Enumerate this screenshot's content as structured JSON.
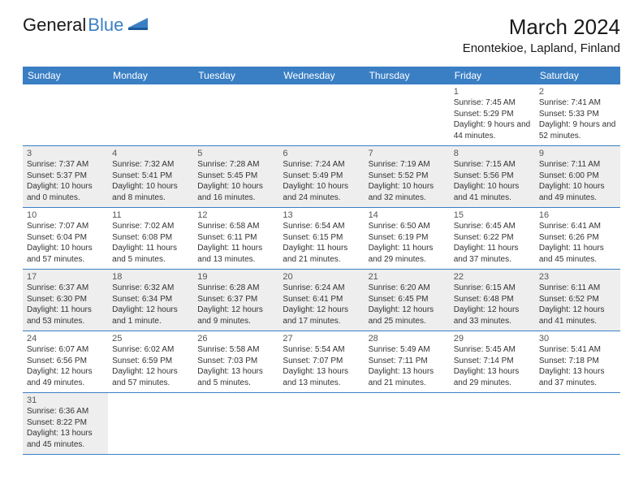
{
  "logo": {
    "general": "General",
    "blue": "Blue"
  },
  "title": "March 2024",
  "location": "Enontekioe, Lapland, Finland",
  "colors": {
    "header_bg": "#3a7fc4",
    "header_text": "#ffffff",
    "shaded_cell": "#eeeeee",
    "row_border": "#3a7fc4",
    "logo_blue": "#3a7fc4"
  },
  "weekdays": [
    "Sunday",
    "Monday",
    "Tuesday",
    "Wednesday",
    "Thursday",
    "Friday",
    "Saturday"
  ],
  "weeks": [
    [
      null,
      null,
      null,
      null,
      null,
      {
        "n": "1",
        "sr": "7:45 AM",
        "ss": "5:29 PM",
        "dl": "9 hours and 44 minutes."
      },
      {
        "n": "2",
        "sr": "7:41 AM",
        "ss": "5:33 PM",
        "dl": "9 hours and 52 minutes."
      }
    ],
    [
      {
        "n": "3",
        "sr": "7:37 AM",
        "ss": "5:37 PM",
        "dl": "10 hours and 0 minutes.",
        "shaded": true
      },
      {
        "n": "4",
        "sr": "7:32 AM",
        "ss": "5:41 PM",
        "dl": "10 hours and 8 minutes.",
        "shaded": true
      },
      {
        "n": "5",
        "sr": "7:28 AM",
        "ss": "5:45 PM",
        "dl": "10 hours and 16 minutes.",
        "shaded": true
      },
      {
        "n": "6",
        "sr": "7:24 AM",
        "ss": "5:49 PM",
        "dl": "10 hours and 24 minutes.",
        "shaded": true
      },
      {
        "n": "7",
        "sr": "7:19 AM",
        "ss": "5:52 PM",
        "dl": "10 hours and 32 minutes.",
        "shaded": true
      },
      {
        "n": "8",
        "sr": "7:15 AM",
        "ss": "5:56 PM",
        "dl": "10 hours and 41 minutes.",
        "shaded": true
      },
      {
        "n": "9",
        "sr": "7:11 AM",
        "ss": "6:00 PM",
        "dl": "10 hours and 49 minutes.",
        "shaded": true
      }
    ],
    [
      {
        "n": "10",
        "sr": "7:07 AM",
        "ss": "6:04 PM",
        "dl": "10 hours and 57 minutes."
      },
      {
        "n": "11",
        "sr": "7:02 AM",
        "ss": "6:08 PM",
        "dl": "11 hours and 5 minutes."
      },
      {
        "n": "12",
        "sr": "6:58 AM",
        "ss": "6:11 PM",
        "dl": "11 hours and 13 minutes."
      },
      {
        "n": "13",
        "sr": "6:54 AM",
        "ss": "6:15 PM",
        "dl": "11 hours and 21 minutes."
      },
      {
        "n": "14",
        "sr": "6:50 AM",
        "ss": "6:19 PM",
        "dl": "11 hours and 29 minutes."
      },
      {
        "n": "15",
        "sr": "6:45 AM",
        "ss": "6:22 PM",
        "dl": "11 hours and 37 minutes."
      },
      {
        "n": "16",
        "sr": "6:41 AM",
        "ss": "6:26 PM",
        "dl": "11 hours and 45 minutes."
      }
    ],
    [
      {
        "n": "17",
        "sr": "6:37 AM",
        "ss": "6:30 PM",
        "dl": "11 hours and 53 minutes.",
        "shaded": true
      },
      {
        "n": "18",
        "sr": "6:32 AM",
        "ss": "6:34 PM",
        "dl": "12 hours and 1 minute.",
        "shaded": true
      },
      {
        "n": "19",
        "sr": "6:28 AM",
        "ss": "6:37 PM",
        "dl": "12 hours and 9 minutes.",
        "shaded": true
      },
      {
        "n": "20",
        "sr": "6:24 AM",
        "ss": "6:41 PM",
        "dl": "12 hours and 17 minutes.",
        "shaded": true
      },
      {
        "n": "21",
        "sr": "6:20 AM",
        "ss": "6:45 PM",
        "dl": "12 hours and 25 minutes.",
        "shaded": true
      },
      {
        "n": "22",
        "sr": "6:15 AM",
        "ss": "6:48 PM",
        "dl": "12 hours and 33 minutes.",
        "shaded": true
      },
      {
        "n": "23",
        "sr": "6:11 AM",
        "ss": "6:52 PM",
        "dl": "12 hours and 41 minutes.",
        "shaded": true
      }
    ],
    [
      {
        "n": "24",
        "sr": "6:07 AM",
        "ss": "6:56 PM",
        "dl": "12 hours and 49 minutes."
      },
      {
        "n": "25",
        "sr": "6:02 AM",
        "ss": "6:59 PM",
        "dl": "12 hours and 57 minutes."
      },
      {
        "n": "26",
        "sr": "5:58 AM",
        "ss": "7:03 PM",
        "dl": "13 hours and 5 minutes."
      },
      {
        "n": "27",
        "sr": "5:54 AM",
        "ss": "7:07 PM",
        "dl": "13 hours and 13 minutes."
      },
      {
        "n": "28",
        "sr": "5:49 AM",
        "ss": "7:11 PM",
        "dl": "13 hours and 21 minutes."
      },
      {
        "n": "29",
        "sr": "5:45 AM",
        "ss": "7:14 PM",
        "dl": "13 hours and 29 minutes."
      },
      {
        "n": "30",
        "sr": "5:41 AM",
        "ss": "7:18 PM",
        "dl": "13 hours and 37 minutes."
      }
    ],
    [
      {
        "n": "31",
        "sr": "6:36 AM",
        "ss": "8:22 PM",
        "dl": "13 hours and 45 minutes.",
        "shaded": true
      },
      null,
      null,
      null,
      null,
      null,
      null
    ]
  ],
  "labels": {
    "sunrise": "Sunrise: ",
    "sunset": "Sunset: ",
    "daylight": "Daylight: "
  }
}
